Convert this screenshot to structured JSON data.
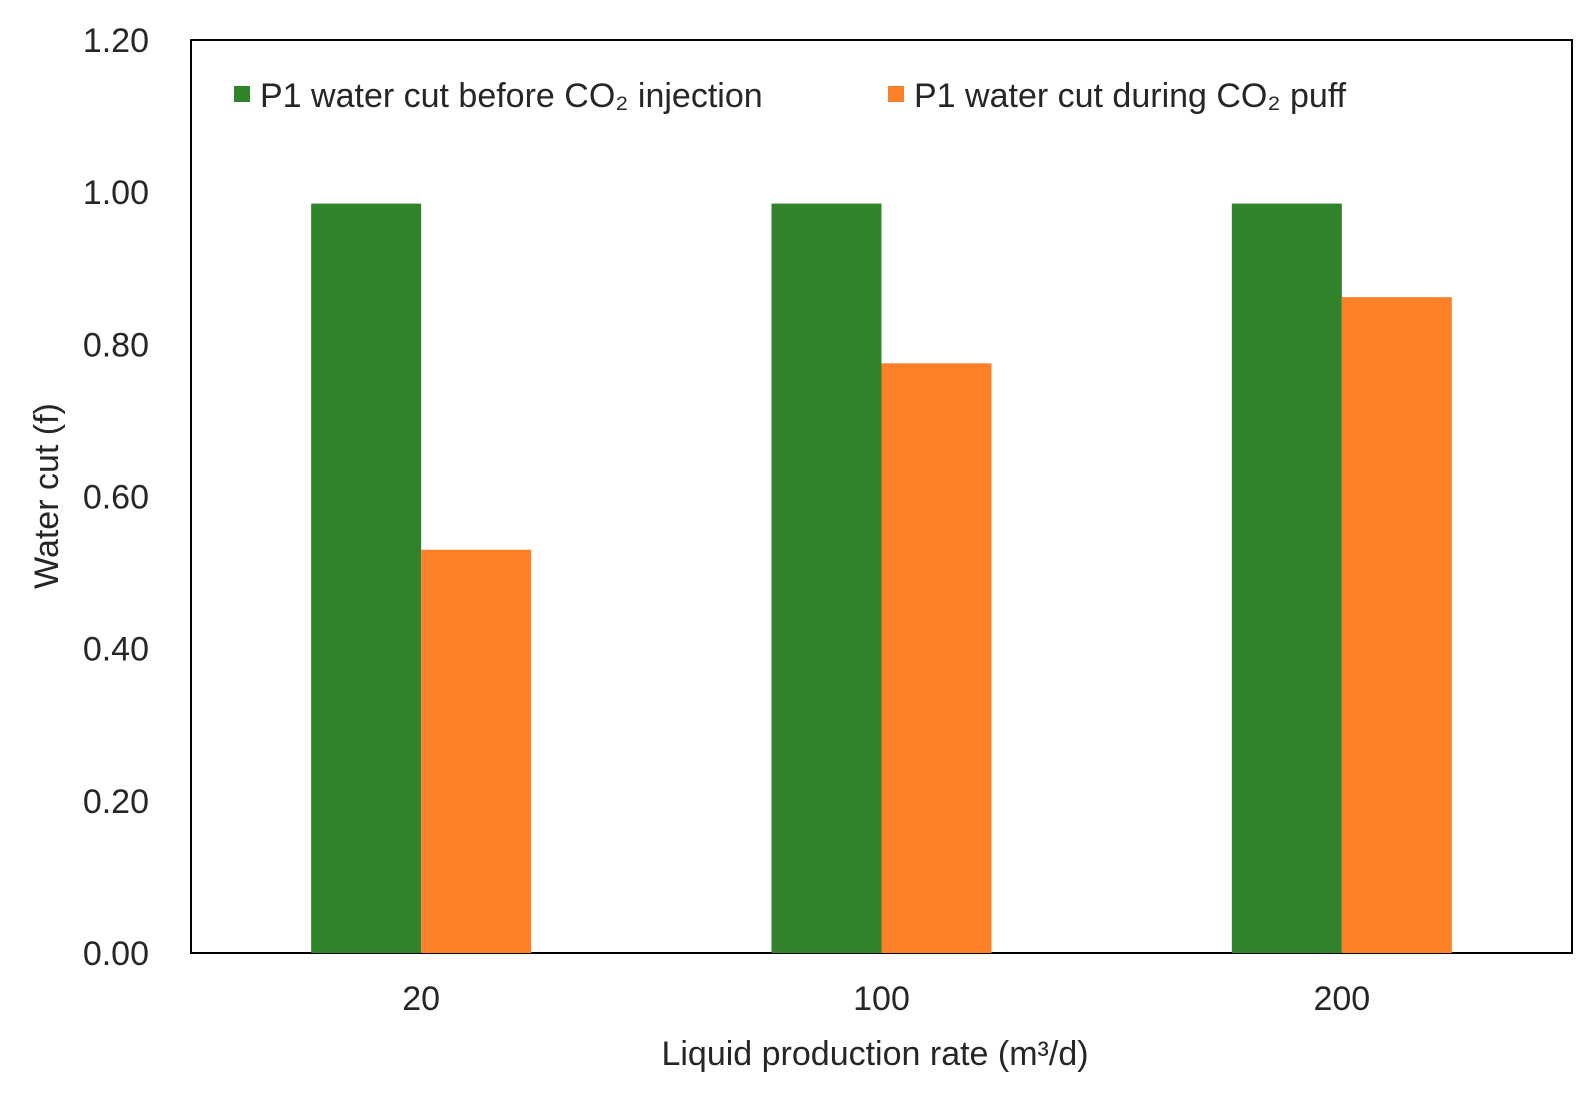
{
  "chart_data": {
    "type": "bar",
    "title": "",
    "xlabel": "Liquid production rate (m³/d)",
    "ylabel": "Water cut (f)",
    "categories": [
      "20",
      "100",
      "200"
    ],
    "ylim": [
      0,
      1.2
    ],
    "yticks": [
      "0.00",
      "0.20",
      "0.40",
      "0.60",
      "0.80",
      "1.00",
      "1.20"
    ],
    "grid": false,
    "legend_position": "top",
    "series": [
      {
        "name": "P1 water cut before CO₂ injection",
        "color": "#31832b",
        "values": [
          0.985,
          0.985,
          0.985
        ]
      },
      {
        "name": "P1 water cut during CO₂ puff",
        "color": "#fd7f28",
        "values": [
          0.53,
          0.775,
          0.862
        ]
      }
    ]
  }
}
